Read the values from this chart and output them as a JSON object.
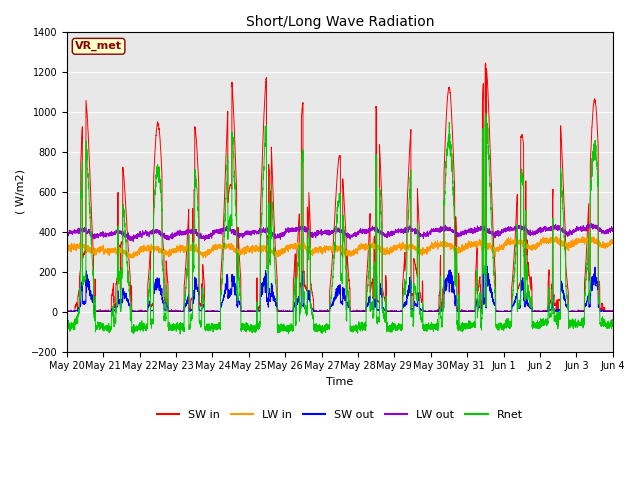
{
  "title": "Short/Long Wave Radiation",
  "xlabel": "Time",
  "ylabel": "( W/m2)",
  "ylim": [
    -200,
    1400
  ],
  "yticks": [
    -200,
    0,
    200,
    400,
    600,
    800,
    1000,
    1200,
    1400
  ],
  "station_label": "VR_met",
  "x_tick_labels": [
    "May 20",
    "May 21",
    "May 22",
    "May 23",
    "May 24",
    "May 25",
    "May 26",
    "May 27",
    "May 28",
    "May 29",
    "May 30",
    "May 31",
    "Jun 1",
    "Jun 2",
    "Jun 3",
    "Jun 4"
  ],
  "colors": {
    "SW_in": "#ff0000",
    "LW_in": "#ff9900",
    "SW_out": "#0000ff",
    "LW_out": "#9900cc",
    "Rnet": "#00cc00"
  },
  "background_color": "#e8e8e8",
  "n_days": 15,
  "pts_per_day": 288,
  "sw_day_peaks": [
    1070,
    750,
    940,
    930,
    1180,
    1180,
    1050,
    780,
    1020,
    960,
    1120,
    1240,
    880,
    1040,
    1060
  ],
  "lw_in_base": [
    310,
    290,
    300,
    300,
    310,
    300,
    310,
    300,
    310,
    310,
    320,
    320,
    330,
    340,
    340
  ],
  "lw_out_base": [
    385,
    375,
    380,
    380,
    390,
    385,
    395,
    385,
    390,
    390,
    395,
    395,
    400,
    400,
    405
  ],
  "figsize": [
    6.4,
    4.8
  ],
  "dpi": 100
}
